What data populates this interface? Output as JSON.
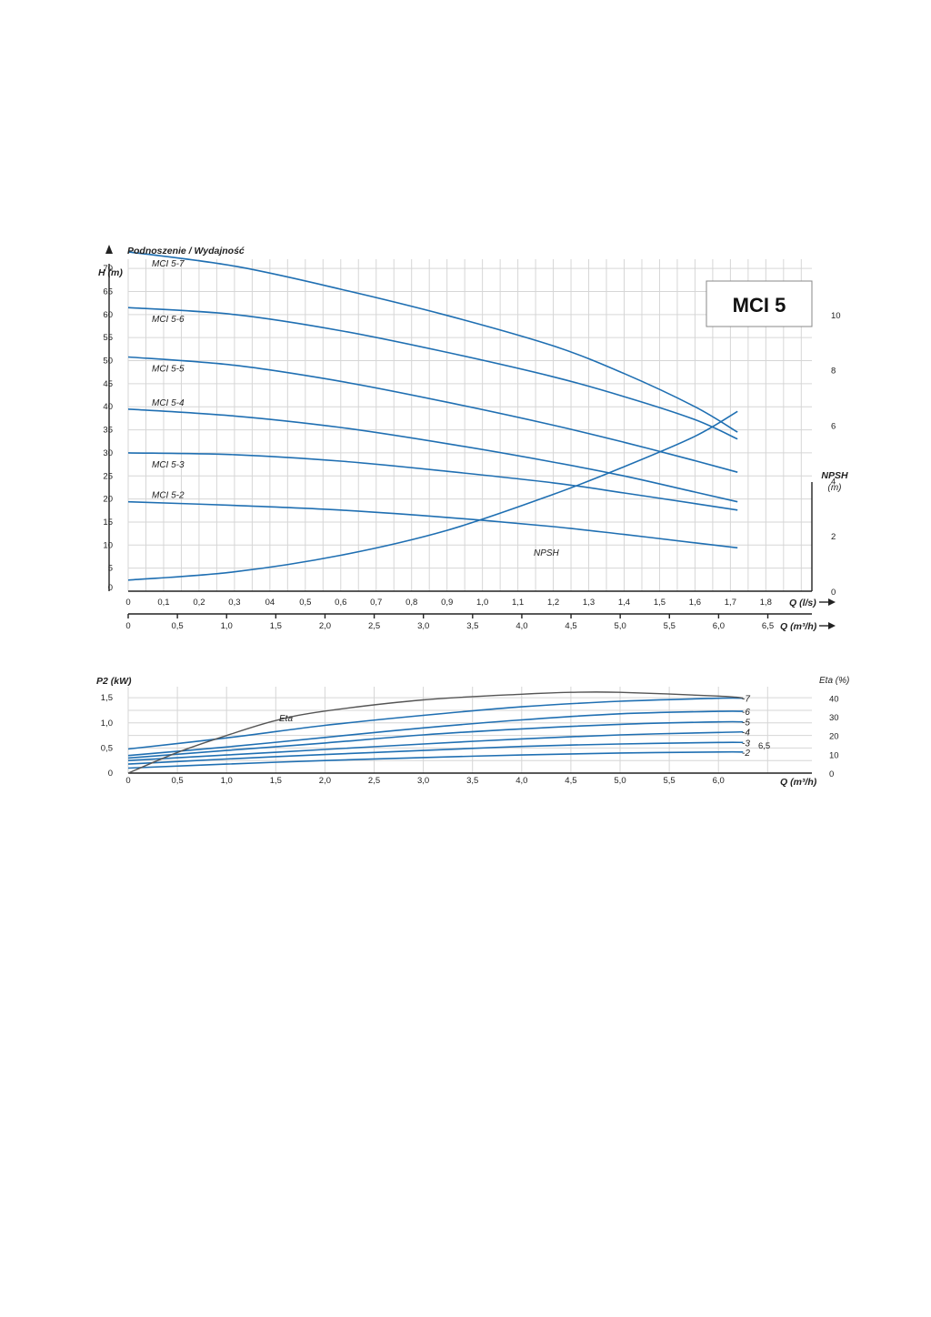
{
  "title": "MCI 5",
  "top_title": "Podnoszenie / Wydajność",
  "chart_data": [
    {
      "type": "line",
      "title": "Podnoszenie / Wydajność",
      "ylabel": "H (m)",
      "y2label": "NPSH",
      "y2unit": "(m)",
      "xlabel_ls": "Q (l/s)",
      "xlabel_m3h": "Q (m³/h)",
      "ylim": [
        0,
        72
      ],
      "y2lim": [
        0,
        12
      ],
      "xlim_ls": [
        0,
        1.93
      ],
      "yticks": [
        "0",
        "5",
        "10",
        "15",
        "20",
        "25",
        "30",
        "35",
        "40",
        "45",
        "50",
        "55",
        "60",
        "65",
        "70"
      ],
      "y2ticks": [
        "0",
        "2",
        "4",
        "6",
        "8",
        "10"
      ],
      "xticks_ls": [
        "0",
        "0,1",
        "0,2",
        "0,3",
        "04",
        "0,5",
        "0,6",
        "0,7",
        "0,8",
        "0,9",
        "1,0",
        "1,1",
        "1,2",
        "1,3",
        "1,4",
        "1,5",
        "1,6",
        "1,7",
        "1,8"
      ],
      "xticks_m3h": [
        "0",
        "0,5",
        "1,0",
        "1,5",
        "2,0",
        "2,5",
        "3,0",
        "3,5",
        "4,0",
        "4,5",
        "5,0",
        "5,5",
        "6,0",
        "6,5"
      ],
      "series": [
        {
          "name": "MCI 5-7",
          "x": [
            0,
            0.3,
            0.6,
            0.9,
            1.2,
            1.4,
            1.6,
            1.72
          ],
          "y": [
            73.6,
            70.5,
            65.5,
            59.8,
            53.2,
            47.2,
            40.0,
            34.5
          ]
        },
        {
          "name": "MCI 5-6",
          "x": [
            0,
            0.3,
            0.6,
            0.9,
            1.2,
            1.4,
            1.6,
            1.72
          ],
          "y": [
            61.5,
            60.0,
            56.5,
            51.8,
            46.5,
            42.2,
            37.2,
            33.0
          ]
        },
        {
          "name": "MCI 5-5",
          "x": [
            0,
            0.3,
            0.6,
            0.9,
            1.2,
            1.4,
            1.6,
            1.72
          ],
          "y": [
            50.8,
            49.0,
            45.5,
            41.0,
            36.0,
            32.3,
            28.3,
            25.8
          ]
        },
        {
          "name": "MCI 5-4",
          "x": [
            0,
            0.3,
            0.6,
            0.9,
            1.2,
            1.4,
            1.6,
            1.72
          ],
          "y": [
            39.5,
            38.0,
            35.5,
            32.0,
            28.0,
            25.0,
            21.5,
            19.4
          ]
        },
        {
          "name": "MCI 5-3",
          "x": [
            0,
            0.3,
            0.6,
            0.9,
            1.2,
            1.4,
            1.6,
            1.72
          ],
          "y": [
            30.0,
            29.6,
            28.2,
            26.0,
            23.5,
            21.3,
            19.0,
            17.6
          ]
        },
        {
          "name": "MCI 5-2",
          "x": [
            0,
            0.3,
            0.6,
            0.9,
            1.2,
            1.4,
            1.6,
            1.72
          ],
          "y": [
            19.4,
            18.6,
            17.6,
            16.0,
            14.0,
            12.3,
            10.5,
            9.4
          ]
        }
      ],
      "npsh": {
        "name": "NPSH",
        "x": [
          0,
          0.3,
          0.6,
          0.9,
          1.2,
          1.4,
          1.6,
          1.72
        ],
        "y": [
          0.4,
          0.7,
          1.3,
          2.2,
          3.5,
          4.5,
          5.6,
          6.5
        ]
      }
    },
    {
      "type": "line",
      "ylabel": "P2 (kW)",
      "y2label": "Eta (%)",
      "xlabel": "Q (m³/h)",
      "ylim": [
        0,
        1.72
      ],
      "y2lim": [
        0,
        46
      ],
      "xlim": [
        0,
        6.95
      ],
      "yticks": [
        "0",
        "0,5",
        "1,0",
        "1,5"
      ],
      "y2ticks": [
        "0",
        "10",
        "20",
        "30",
        "40"
      ],
      "xticks": [
        "0",
        "0,5",
        "1,0",
        "1,5",
        "2,0",
        "2,5",
        "3,0",
        "3,5",
        "4,0",
        "4,5",
        "5,0",
        "5,5",
        "6,0"
      ],
      "x_end_label": "6,5",
      "series": [
        {
          "name": "-7",
          "x": [
            0,
            1,
            2,
            3,
            4,
            5,
            6,
            6.25
          ],
          "y": [
            0.48,
            0.7,
            0.95,
            1.15,
            1.32,
            1.43,
            1.49,
            1.49
          ]
        },
        {
          "name": "-6",
          "x": [
            0,
            1,
            2,
            3,
            4,
            5,
            6,
            6.25
          ],
          "y": [
            0.35,
            0.52,
            0.71,
            0.9,
            1.06,
            1.18,
            1.23,
            1.23
          ]
        },
        {
          "name": "-5",
          "x": [
            0,
            1,
            2,
            3,
            4,
            5,
            6,
            6.25
          ],
          "y": [
            0.3,
            0.45,
            0.6,
            0.76,
            0.88,
            0.97,
            1.02,
            1.02
          ]
        },
        {
          "name": "-4",
          "x": [
            0,
            1,
            2,
            3,
            4,
            5,
            6,
            6.25
          ],
          "y": [
            0.25,
            0.36,
            0.47,
            0.58,
            0.68,
            0.76,
            0.81,
            0.82
          ]
        },
        {
          "name": "-3",
          "x": [
            0,
            1,
            2,
            3,
            4,
            5,
            6,
            6.25
          ],
          "y": [
            0.18,
            0.28,
            0.37,
            0.45,
            0.53,
            0.58,
            0.61,
            0.61
          ]
        },
        {
          "name": "-2",
          "x": [
            0,
            1,
            2,
            3,
            4,
            5,
            6,
            6.25
          ],
          "y": [
            0.1,
            0.18,
            0.25,
            0.31,
            0.36,
            0.4,
            0.42,
            0.42
          ]
        }
      ],
      "eta": {
        "name": "Eta",
        "x": [
          0,
          0.5,
          1,
          1.5,
          2,
          3,
          4,
          4.5,
          5,
          6,
          6.25
        ],
        "y": [
          0,
          11,
          20,
          28,
          33,
          39,
          42,
          43,
          43,
          41,
          40
        ]
      }
    }
  ]
}
